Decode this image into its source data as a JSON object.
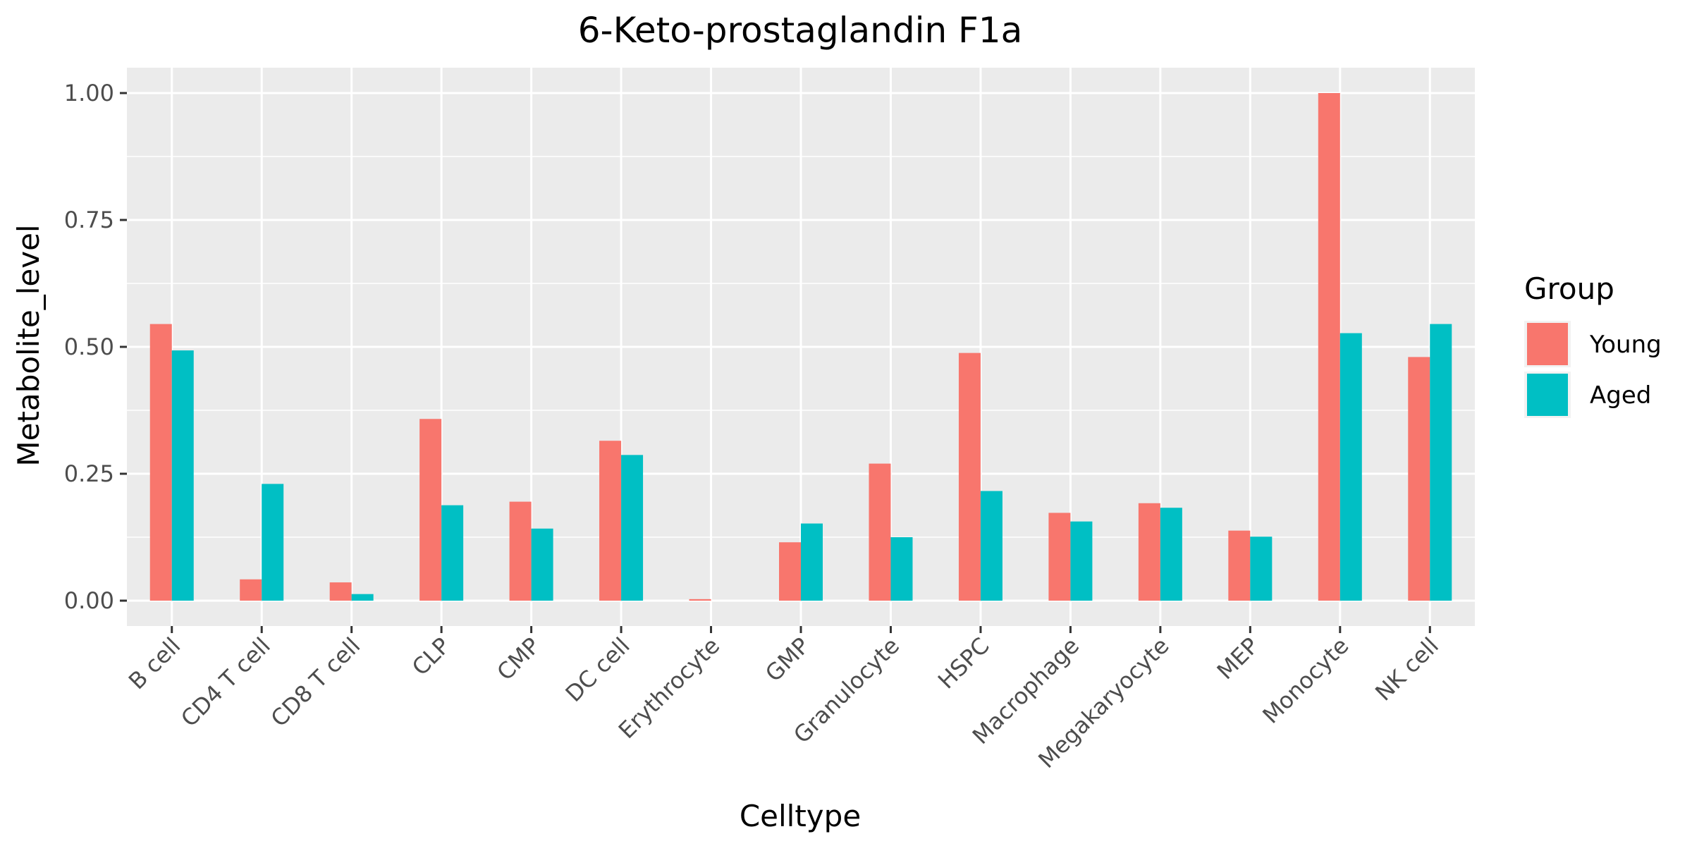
{
  "chart_data": {
    "type": "bar",
    "title": "6-Keto-prostaglandin F1a",
    "xlabel": "Celltype",
    "ylabel": "Metabolite_level",
    "ylim": [
      -0.05,
      1.05
    ],
    "yticks": [
      0.0,
      0.25,
      0.5,
      0.75,
      1.0
    ],
    "ytick_labels": [
      "0.00",
      "0.25",
      "0.50",
      "0.75",
      "1.00"
    ],
    "grid": true,
    "legend": {
      "title": "Group",
      "placement": "right"
    },
    "categories": [
      "B cell",
      "CD4 T cell",
      "CD8 T cell",
      "CLP",
      "CMP",
      "DC cell",
      "Erythrocyte",
      "GMP",
      "Granulocyte",
      "HSPC",
      "Macrophage",
      "Megakaryocyte",
      "MEP",
      "Monocyte",
      "NK cell"
    ],
    "series": [
      {
        "name": "Young",
        "color": "#F8766D",
        "values": [
          0.545,
          0.042,
          0.036,
          0.358,
          0.195,
          0.315,
          0.003,
          0.115,
          0.27,
          0.488,
          0.173,
          0.192,
          0.138,
          1.0,
          0.48
        ]
      },
      {
        "name": "Aged",
        "color": "#00BFC4",
        "values": [
          0.493,
          0.23,
          0.013,
          0.188,
          0.142,
          0.287,
          0.0,
          0.152,
          0.125,
          0.216,
          0.156,
          0.183,
          0.126,
          0.527,
          0.545
        ]
      }
    ]
  }
}
